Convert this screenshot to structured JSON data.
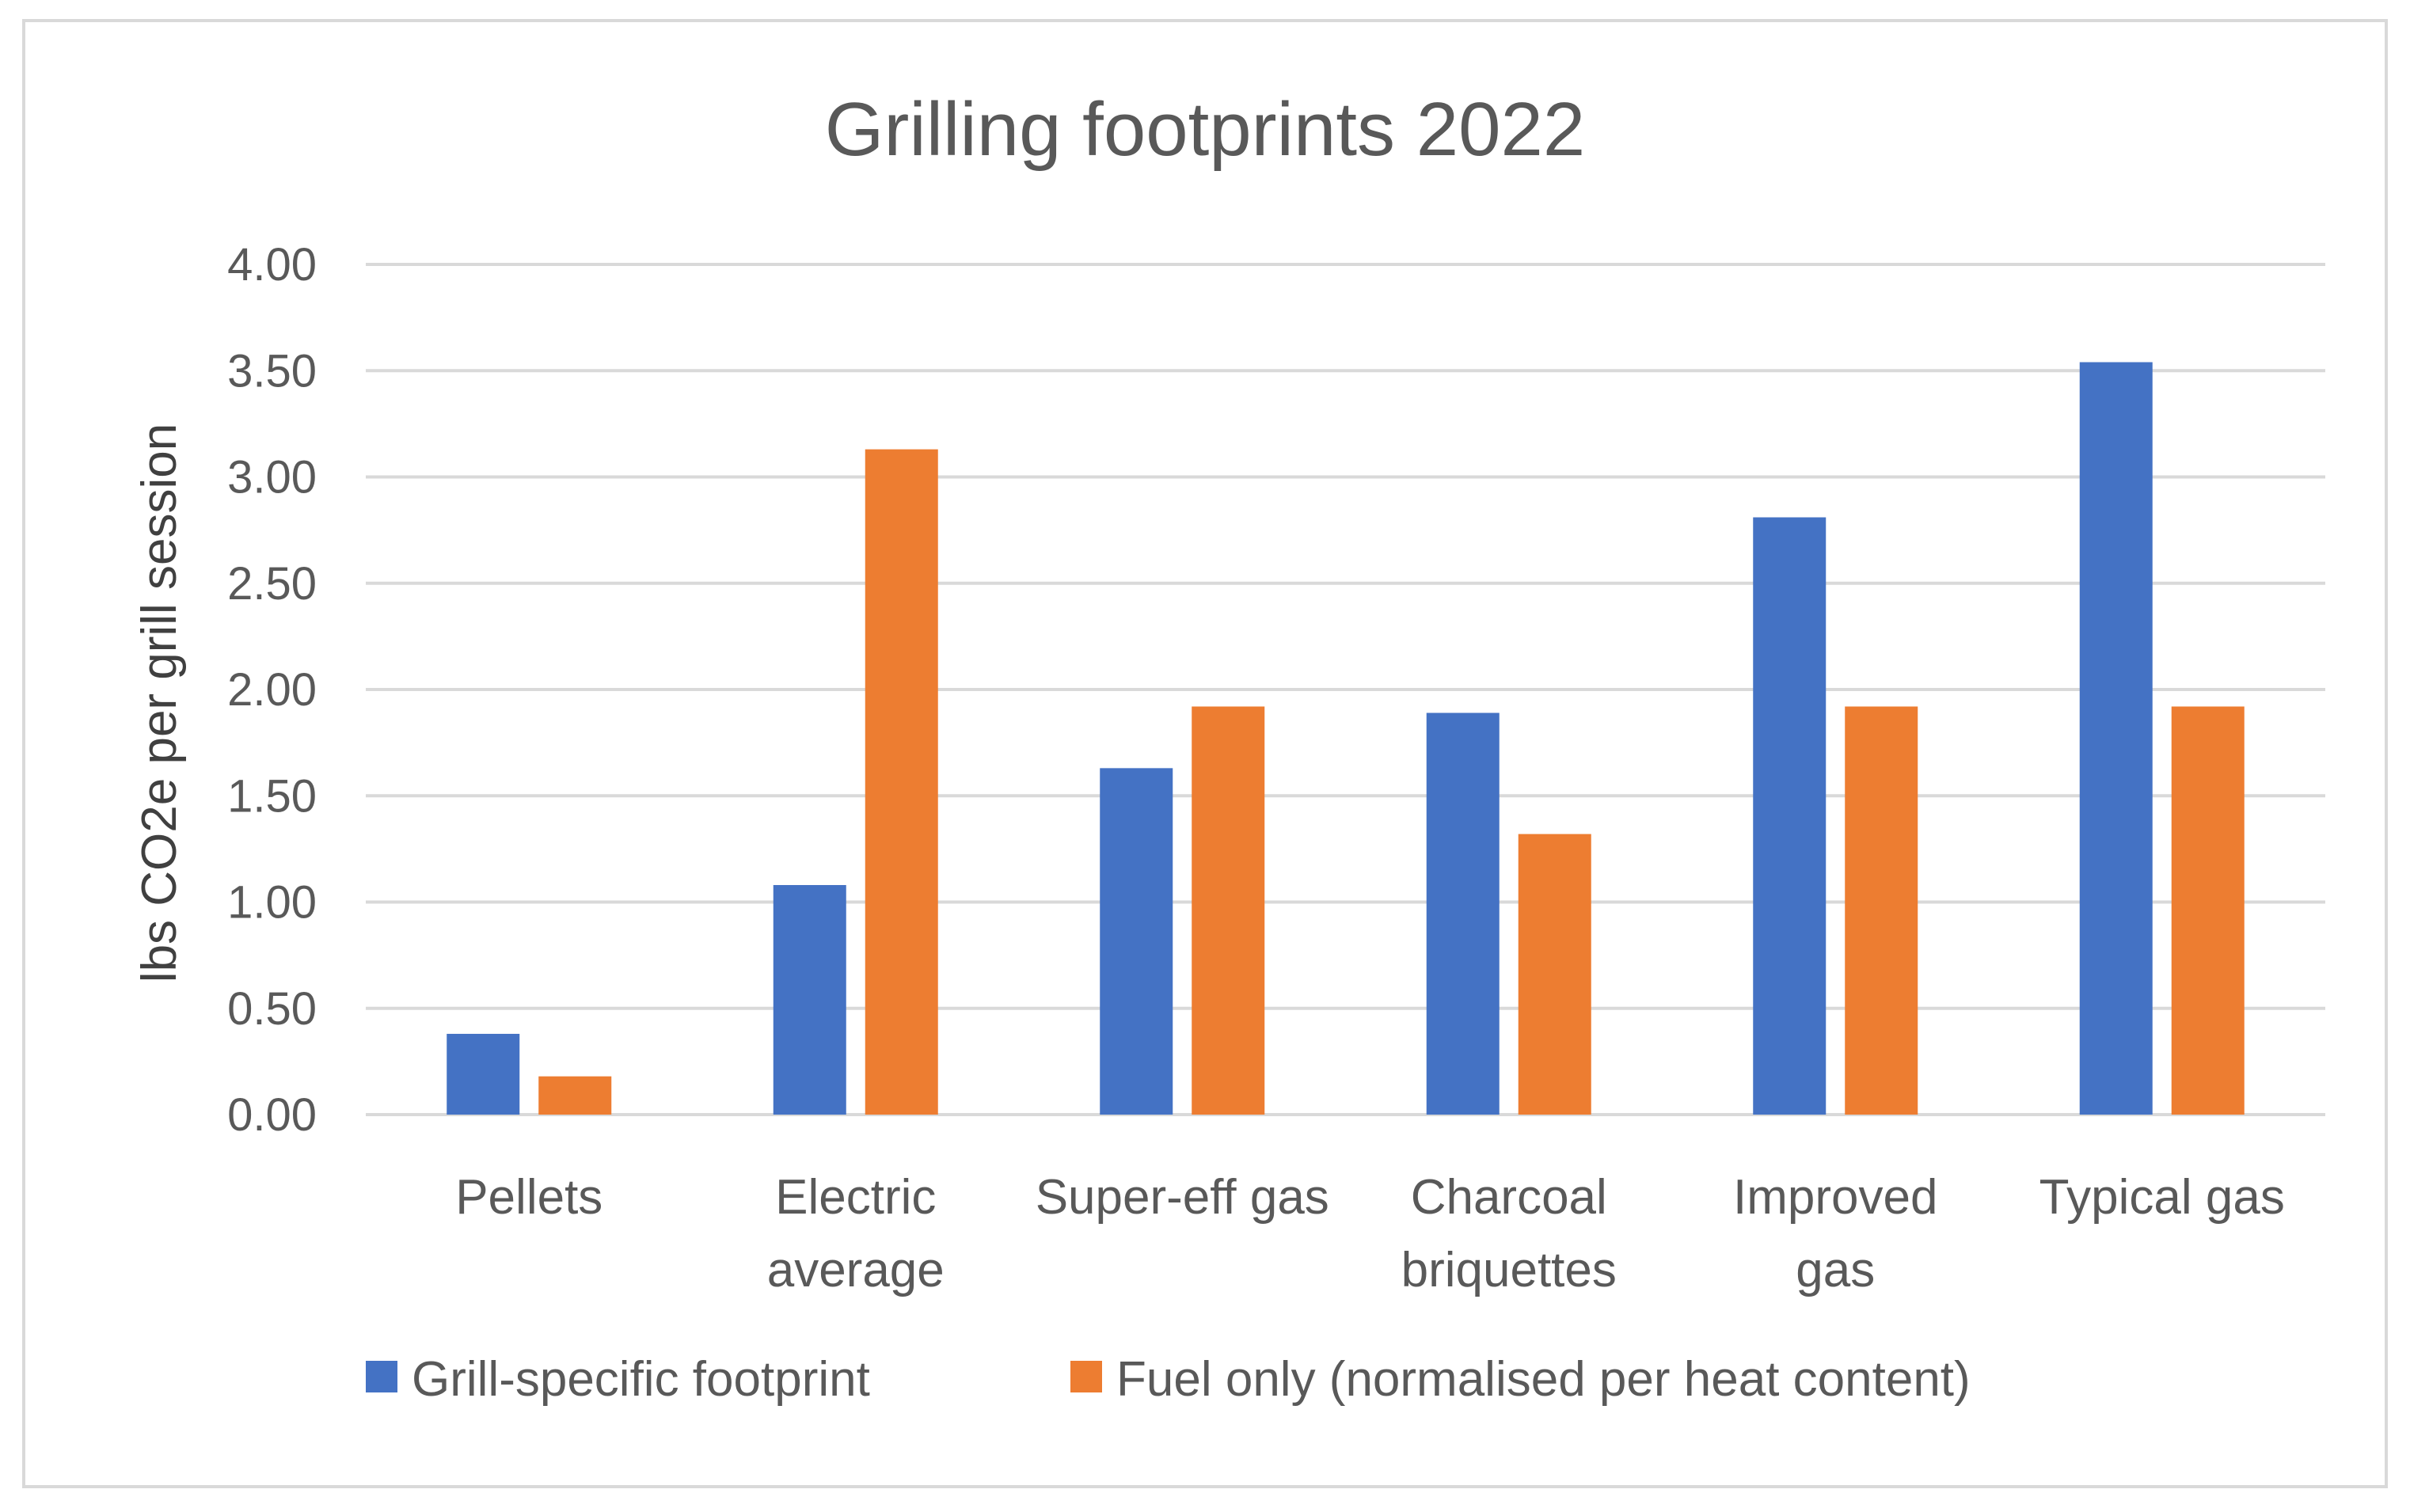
{
  "chart_data": {
    "type": "bar",
    "title": "Grilling footprints 2022",
    "xlabel": "",
    "ylabel": "lbs CO2e per grill session",
    "ylim": [
      0,
      4
    ],
    "ytick_step": 0.5,
    "ytick_labels": [
      "0.00",
      "0.50",
      "1.00",
      "1.50",
      "2.00",
      "2.50",
      "3.00",
      "3.50",
      "4.00"
    ],
    "grid": true,
    "legend_position": "bottom",
    "categories": [
      [
        "Pellets"
      ],
      [
        "Electric",
        "average"
      ],
      [
        "Super-eff gas"
      ],
      [
        "Charcoal",
        "briquettes"
      ],
      [
        "Improved",
        "gas"
      ],
      [
        "Typical gas"
      ]
    ],
    "series": [
      {
        "name": "Grill-specific footprint",
        "color": "#4472c4",
        "values": [
          0.38,
          1.08,
          1.63,
          1.89,
          2.81,
          3.54
        ]
      },
      {
        "name": "Fuel only (normalised per heat content)",
        "color": "#ed7d31",
        "values": [
          0.18,
          3.13,
          1.92,
          1.32,
          1.92,
          1.92
        ]
      }
    ]
  }
}
